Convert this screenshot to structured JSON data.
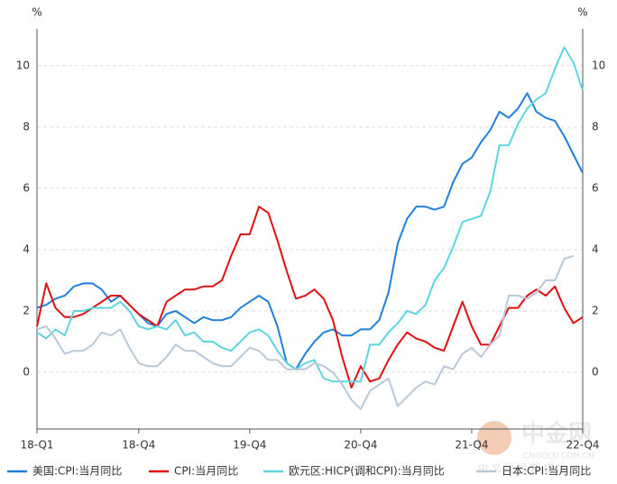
{
  "chart_data": {
    "type": "line",
    "y_unit_left": "%",
    "y_unit_right": "%",
    "categories": [
      "18-Q1",
      null,
      null,
      null,
      null,
      null,
      null,
      null,
      null,
      null,
      null,
      "18-Q4",
      null,
      null,
      null,
      null,
      null,
      null,
      null,
      null,
      null,
      null,
      null,
      "19-Q4",
      null,
      null,
      null,
      null,
      null,
      null,
      null,
      null,
      null,
      null,
      null,
      "20-Q4",
      null,
      null,
      null,
      null,
      null,
      null,
      null,
      null,
      null,
      null,
      null,
      "21-Q4",
      null,
      null,
      null,
      null,
      null,
      null,
      null,
      null,
      null,
      null,
      null,
      "22-Q4"
    ],
    "series": [
      {
        "name": "美国:CPI:当月同比",
        "color": "#1f7fdc",
        "values": [
          2.1,
          2.2,
          2.4,
          2.5,
          2.8,
          2.9,
          2.9,
          2.7,
          2.3,
          2.5,
          2.2,
          1.9,
          1.6,
          1.5,
          1.9,
          2.0,
          1.8,
          1.6,
          1.8,
          1.7,
          1.7,
          1.8,
          2.1,
          2.3,
          2.5,
          2.3,
          1.5,
          0.3,
          0.1,
          0.6,
          1.0,
          1.3,
          1.4,
          1.2,
          1.2,
          1.4,
          1.4,
          1.7,
          2.6,
          4.2,
          5.0,
          5.4,
          5.4,
          5.3,
          5.4,
          6.2,
          6.8,
          7.0,
          7.5,
          7.9,
          8.5,
          8.3,
          8.6,
          9.1,
          8.5,
          8.3,
          8.2,
          7.7,
          7.1,
          6.5
        ]
      },
      {
        "name": "CPI:当月同比",
        "color": "#e01010",
        "values": [
          1.5,
          2.9,
          2.1,
          1.8,
          1.8,
          1.9,
          2.1,
          2.3,
          2.5,
          2.5,
          2.2,
          1.9,
          1.7,
          1.5,
          2.3,
          2.5,
          2.7,
          2.7,
          2.8,
          2.8,
          3.0,
          3.8,
          4.5,
          4.5,
          5.4,
          5.2,
          4.3,
          3.3,
          2.4,
          2.5,
          2.7,
          2.4,
          1.7,
          0.5,
          -0.5,
          0.2,
          -0.3,
          -0.2,
          0.4,
          0.9,
          1.3,
          1.1,
          1.0,
          0.8,
          0.7,
          1.5,
          2.3,
          1.5,
          0.9,
          0.9,
          1.5,
          2.1,
          2.1,
          2.5,
          2.7,
          2.5,
          2.8,
          2.1,
          1.6,
          1.8
        ]
      },
      {
        "name": "欧元区:HICP(调和CPI):当月同比",
        "color": "#5dd5e0",
        "values": [
          1.3,
          1.1,
          1.4,
          1.2,
          2.0,
          2.0,
          2.1,
          2.1,
          2.1,
          2.3,
          2.0,
          1.5,
          1.4,
          1.5,
          1.4,
          1.7,
          1.2,
          1.3,
          1.0,
          1.0,
          0.8,
          0.7,
          1.0,
          1.3,
          1.4,
          1.2,
          0.7,
          0.3,
          0.1,
          0.3,
          0.4,
          -0.2,
          -0.3,
          -0.3,
          -0.3,
          -0.3,
          0.9,
          0.9,
          1.3,
          1.6,
          2.0,
          1.9,
          2.2,
          3.0,
          3.4,
          4.1,
          4.9,
          5.0,
          5.1,
          5.9,
          7.4,
          7.4,
          8.1,
          8.6,
          8.9,
          9.1,
          9.9,
          10.6,
          10.1,
          9.2
        ]
      },
      {
        "name": "日本:CPI:当月同比",
        "color": "#b8c8d8",
        "values": [
          1.4,
          1.5,
          1.1,
          0.6,
          0.7,
          0.7,
          0.9,
          1.3,
          1.2,
          1.4,
          0.8,
          0.3,
          0.2,
          0.2,
          0.5,
          0.9,
          0.7,
          0.7,
          0.5,
          0.3,
          0.2,
          0.2,
          0.5,
          0.8,
          0.7,
          0.4,
          0.4,
          0.1,
          0.1,
          0.1,
          0.3,
          0.2,
          0.0,
          -0.4,
          -0.9,
          -1.2,
          -0.6,
          -0.4,
          -0.2,
          -1.1,
          -0.8,
          -0.5,
          -0.3,
          -0.4,
          0.2,
          0.1,
          0.6,
          0.8,
          0.5,
          0.9,
          1.2,
          2.5,
          2.5,
          2.4,
          2.6,
          3.0,
          3.0,
          3.7,
          3.8,
          null
        ]
      }
    ],
    "ylim": [
      -1.85,
      11.2
    ],
    "yticks": [
      0,
      2,
      4,
      6,
      8,
      10
    ],
    "grid": true,
    "watermark": {
      "name": "中金网",
      "site": "CNGOLD.COM.CN",
      "slogan": "中 文 财 经 新 媒 体"
    }
  }
}
